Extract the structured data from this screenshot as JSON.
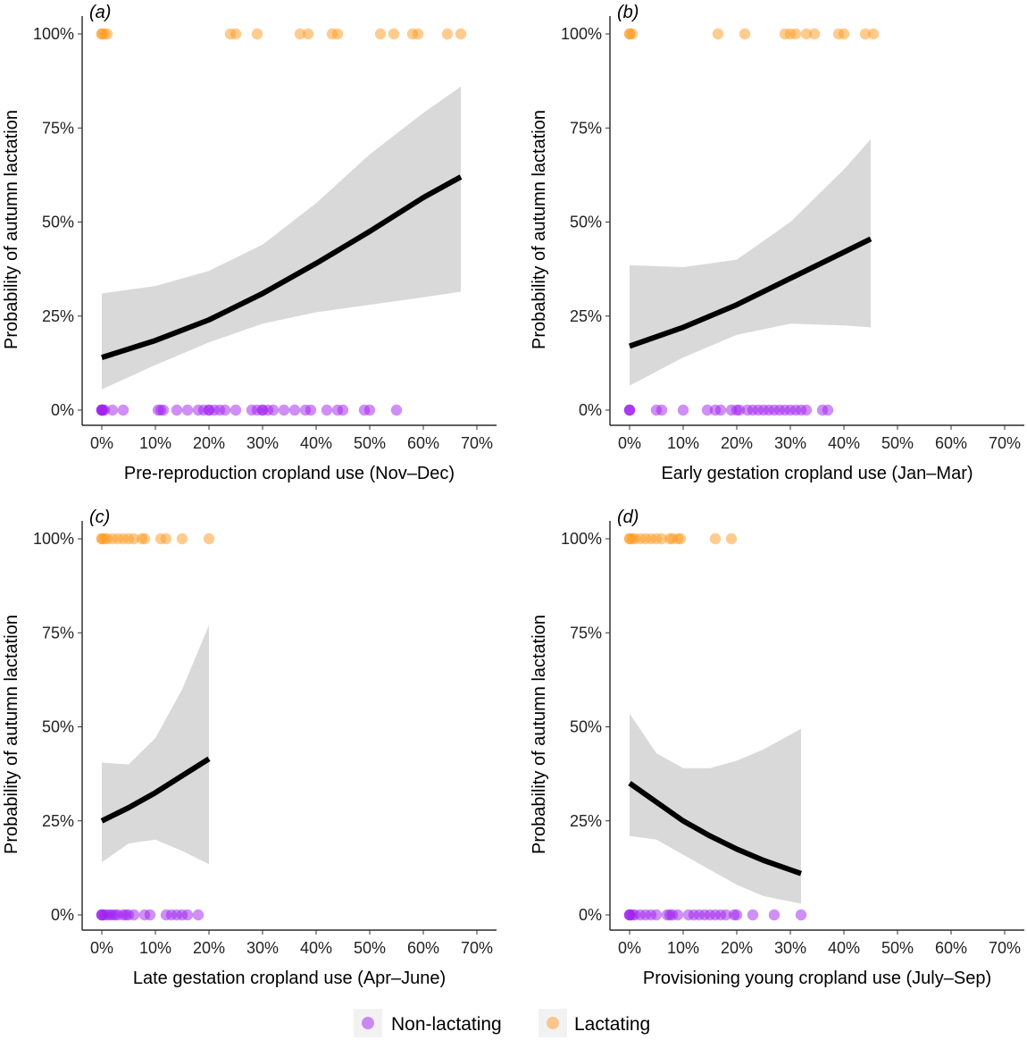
{
  "legend": {
    "items": [
      {
        "label": "Non-lactating",
        "color": "#a020f0"
      },
      {
        "label": "Lactating",
        "color": "#ff9a1f"
      }
    ]
  },
  "chart_data": [
    {
      "type": "scatter",
      "tag": "(a)",
      "xlabel": "Pre-reproduction cropland use (Nov–Dec)",
      "ylabel": "Probability of autumn lactation",
      "xlim": [
        0,
        0.7
      ],
      "ylim": [
        0,
        1
      ],
      "x_ticks": [
        0,
        0.1,
        0.2,
        0.3,
        0.4,
        0.5,
        0.6,
        0.7
      ],
      "x_tick_labels": [
        "0%",
        "10%",
        "20%",
        "30%",
        "40%",
        "50%",
        "60%",
        "70%"
      ],
      "y_ticks": [
        0,
        0.25,
        0.5,
        0.75,
        1
      ],
      "y_tick_labels": [
        "0%",
        "25%",
        "50%",
        "75%",
        "100%"
      ],
      "series": [
        {
          "name": "Non-lactating",
          "y": 0,
          "x": [
            0,
            0,
            0,
            0,
            0.002,
            0.005,
            0.02,
            0.04,
            0.105,
            0.11,
            0.115,
            0.14,
            0.16,
            0.18,
            0.19,
            0.2,
            0.2,
            0.21,
            0.22,
            0.23,
            0.25,
            0.28,
            0.29,
            0.3,
            0.3,
            0.31,
            0.32,
            0.34,
            0.36,
            0.38,
            0.39,
            0.42,
            0.44,
            0.45,
            0.49,
            0.5,
            0.55
          ]
        },
        {
          "name": "Lactating",
          "y": 1,
          "x": [
            0,
            0,
            0.005,
            0.01,
            0.24,
            0.25,
            0.29,
            0.37,
            0.385,
            0.43,
            0.44,
            0.52,
            0.545,
            0.58,
            0.59,
            0.645,
            0.67
          ]
        },
        {
          "name": "fit",
          "x": [
            0,
            0.1,
            0.2,
            0.3,
            0.4,
            0.5,
            0.6,
            0.67
          ],
          "y": [
            0.14,
            0.185,
            0.24,
            0.31,
            0.39,
            0.475,
            0.565,
            0.62
          ],
          "lower": [
            0.055,
            0.12,
            0.18,
            0.23,
            0.26,
            0.28,
            0.3,
            0.315
          ],
          "upper": [
            0.31,
            0.33,
            0.37,
            0.44,
            0.55,
            0.68,
            0.79,
            0.86
          ]
        }
      ]
    },
    {
      "type": "scatter",
      "tag": "(b)",
      "xlabel": "Early gestation cropland use (Jan–Mar)",
      "ylabel": "Probability of autumn lactation",
      "xlim": [
        0,
        0.7
      ],
      "ylim": [
        0,
        1
      ],
      "x_ticks": [
        0,
        0.1,
        0.2,
        0.3,
        0.4,
        0.5,
        0.6,
        0.7
      ],
      "x_tick_labels": [
        "0%",
        "10%",
        "20%",
        "30%",
        "40%",
        "50%",
        "60%",
        "70%"
      ],
      "y_ticks": [
        0,
        0.25,
        0.5,
        0.75,
        1
      ],
      "y_tick_labels": [
        "0%",
        "25%",
        "50%",
        "75%",
        "100%"
      ],
      "series": [
        {
          "name": "Non-lactating",
          "y": 0,
          "x": [
            0,
            0,
            0,
            0.05,
            0.06,
            0.1,
            0.145,
            0.16,
            0.17,
            0.19,
            0.2,
            0.205,
            0.22,
            0.23,
            0.24,
            0.25,
            0.26,
            0.27,
            0.28,
            0.29,
            0.3,
            0.31,
            0.32,
            0.33,
            0.36,
            0.37
          ]
        },
        {
          "name": "Lactating",
          "y": 1,
          "x": [
            0,
            0,
            0.005,
            0.165,
            0.215,
            0.29,
            0.3,
            0.31,
            0.33,
            0.345,
            0.39,
            0.4,
            0.44,
            0.455
          ]
        },
        {
          "name": "fit",
          "x": [
            0,
            0.1,
            0.2,
            0.3,
            0.4,
            0.45
          ],
          "y": [
            0.17,
            0.22,
            0.28,
            0.35,
            0.42,
            0.455
          ],
          "lower": [
            0.065,
            0.14,
            0.2,
            0.23,
            0.225,
            0.22
          ],
          "upper": [
            0.385,
            0.38,
            0.4,
            0.5,
            0.64,
            0.72
          ]
        }
      ]
    },
    {
      "type": "scatter",
      "tag": "(c)",
      "xlabel": "Late gestation cropland use (Apr–June)",
      "ylabel": "Probability of autumn lactation",
      "xlim": [
        0,
        0.7
      ],
      "ylim": [
        0,
        1
      ],
      "x_ticks": [
        0,
        0.1,
        0.2,
        0.3,
        0.4,
        0.5,
        0.6,
        0.7
      ],
      "x_tick_labels": [
        "0%",
        "10%",
        "20%",
        "30%",
        "40%",
        "50%",
        "60%",
        "70%"
      ],
      "y_ticks": [
        0,
        0.25,
        0.5,
        0.75,
        1
      ],
      "y_tick_labels": [
        "0%",
        "25%",
        "50%",
        "75%",
        "100%"
      ],
      "series": [
        {
          "name": "Non-lactating",
          "y": 0,
          "x": [
            0,
            0,
            0,
            0.005,
            0.01,
            0.015,
            0.02,
            0.025,
            0.03,
            0.04,
            0.045,
            0.05,
            0.06,
            0.08,
            0.09,
            0.12,
            0.13,
            0.14,
            0.15,
            0.16,
            0.18
          ]
        },
        {
          "name": "Lactating",
          "y": 1,
          "x": [
            0,
            0,
            0.005,
            0.01,
            0.02,
            0.03,
            0.04,
            0.05,
            0.06,
            0.075,
            0.08,
            0.11,
            0.12,
            0.15,
            0.2
          ]
        },
        {
          "name": "fit",
          "x": [
            0,
            0.05,
            0.1,
            0.15,
            0.2
          ],
          "y": [
            0.25,
            0.285,
            0.325,
            0.37,
            0.415
          ],
          "lower": [
            0.14,
            0.19,
            0.2,
            0.17,
            0.135
          ],
          "upper": [
            0.405,
            0.4,
            0.47,
            0.6,
            0.77
          ]
        }
      ]
    },
    {
      "type": "scatter",
      "tag": "(d)",
      "xlabel": "Provisioning young cropland use (July–Sep)",
      "ylabel": "Probability of autumn lactation",
      "xlim": [
        0,
        0.7
      ],
      "ylim": [
        0,
        1
      ],
      "x_ticks": [
        0,
        0.1,
        0.2,
        0.3,
        0.4,
        0.5,
        0.6,
        0.7
      ],
      "x_tick_labels": [
        "0%",
        "10%",
        "20%",
        "30%",
        "40%",
        "50%",
        "60%",
        "70%"
      ],
      "y_ticks": [
        0,
        0.25,
        0.5,
        0.75,
        1
      ],
      "y_tick_labels": [
        "0%",
        "25%",
        "50%",
        "75%",
        "100%"
      ],
      "series": [
        {
          "name": "Non-lactating",
          "y": 0,
          "x": [
            0,
            0,
            0,
            0.005,
            0.01,
            0.02,
            0.03,
            0.04,
            0.05,
            0.07,
            0.075,
            0.08,
            0.09,
            0.11,
            0.12,
            0.13,
            0.14,
            0.15,
            0.16,
            0.17,
            0.18,
            0.195,
            0.2,
            0.23,
            0.27,
            0.32
          ]
        },
        {
          "name": "Lactating",
          "y": 1,
          "x": [
            0,
            0,
            0.005,
            0.01,
            0.02,
            0.03,
            0.04,
            0.05,
            0.06,
            0.075,
            0.08,
            0.09,
            0.095,
            0.16,
            0.19
          ]
        },
        {
          "name": "fit",
          "x": [
            0,
            0.05,
            0.1,
            0.15,
            0.2,
            0.25,
            0.32
          ],
          "y": [
            0.35,
            0.3,
            0.25,
            0.21,
            0.175,
            0.145,
            0.11
          ],
          "lower": [
            0.21,
            0.2,
            0.16,
            0.12,
            0.08,
            0.05,
            0.03
          ],
          "upper": [
            0.535,
            0.43,
            0.39,
            0.39,
            0.41,
            0.44,
            0.495
          ]
        }
      ]
    }
  ]
}
